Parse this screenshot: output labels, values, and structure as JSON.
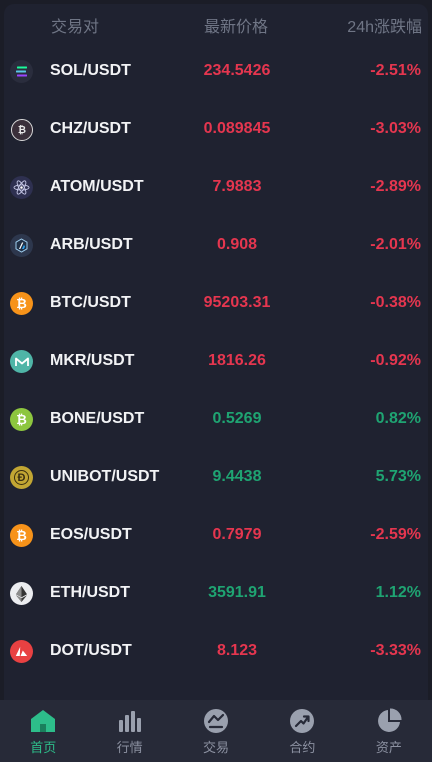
{
  "header": {
    "pair_label": "交易对",
    "price_label": "最新价格",
    "change_label": "24h涨跌幅"
  },
  "rows": [
    {
      "icon": "sol-icon",
      "pair": "SOL/USDT",
      "price": "234.5426",
      "change": "-2.51%",
      "direction": "down",
      "icon_bg": "#2a2d3d"
    },
    {
      "icon": "chz-icon",
      "pair": "CHZ/USDT",
      "price": "0.089845",
      "change": "-3.03%",
      "direction": "down",
      "icon_bg": "#3a2f3a"
    },
    {
      "icon": "atom-icon",
      "pair": "ATOM/USDT",
      "price": "7.9883",
      "change": "-2.89%",
      "direction": "down",
      "icon_bg": "#2e3050"
    },
    {
      "icon": "arb-icon",
      "pair": "ARB/USDT",
      "price": "0.908",
      "change": "-2.01%",
      "direction": "down",
      "icon_bg": "#2d374d"
    },
    {
      "icon": "btc-icon",
      "pair": "BTC/USDT",
      "price": "95203.31",
      "change": "-0.38%",
      "direction": "down",
      "icon_bg": "#f7931a"
    },
    {
      "icon": "mkr-icon",
      "pair": "MKR/USDT",
      "price": "1816.26",
      "change": "-0.92%",
      "direction": "down",
      "icon_bg": "#4fb5a7"
    },
    {
      "icon": "bone-icon",
      "pair": "BONE/USDT",
      "price": "0.5269",
      "change": "0.82%",
      "direction": "up",
      "icon_bg": "#8dc63f"
    },
    {
      "icon": "unibot-icon",
      "pair": "UNIBOT/USDT",
      "price": "9.4438",
      "change": "5.73%",
      "direction": "up",
      "icon_bg": "#c2a633"
    },
    {
      "icon": "eos-icon",
      "pair": "EOS/USDT",
      "price": "0.7979",
      "change": "-2.59%",
      "direction": "down",
      "icon_bg": "#f7931a"
    },
    {
      "icon": "eth-icon",
      "pair": "ETH/USDT",
      "price": "3591.91",
      "change": "1.12%",
      "direction": "up",
      "icon_bg": "#ecedf0"
    },
    {
      "icon": "dot-icon",
      "pair": "DOT/USDT",
      "price": "8.123",
      "change": "-3.33%",
      "direction": "down",
      "icon_bg": "#e84142"
    }
  ],
  "colors": {
    "down": "#e5364f",
    "up": "#1fa472",
    "active_tab": "#2dbd8a"
  },
  "tabbar": {
    "tabs": [
      {
        "label": "首页",
        "icon": "home-icon",
        "active": true
      },
      {
        "label": "行情",
        "icon": "market-bars-icon",
        "active": false
      },
      {
        "label": "交易",
        "icon": "trade-icon",
        "active": false
      },
      {
        "label": "合约",
        "icon": "contract-trend-icon",
        "active": false
      },
      {
        "label": "资产",
        "icon": "assets-pie-icon",
        "active": false
      }
    ]
  }
}
